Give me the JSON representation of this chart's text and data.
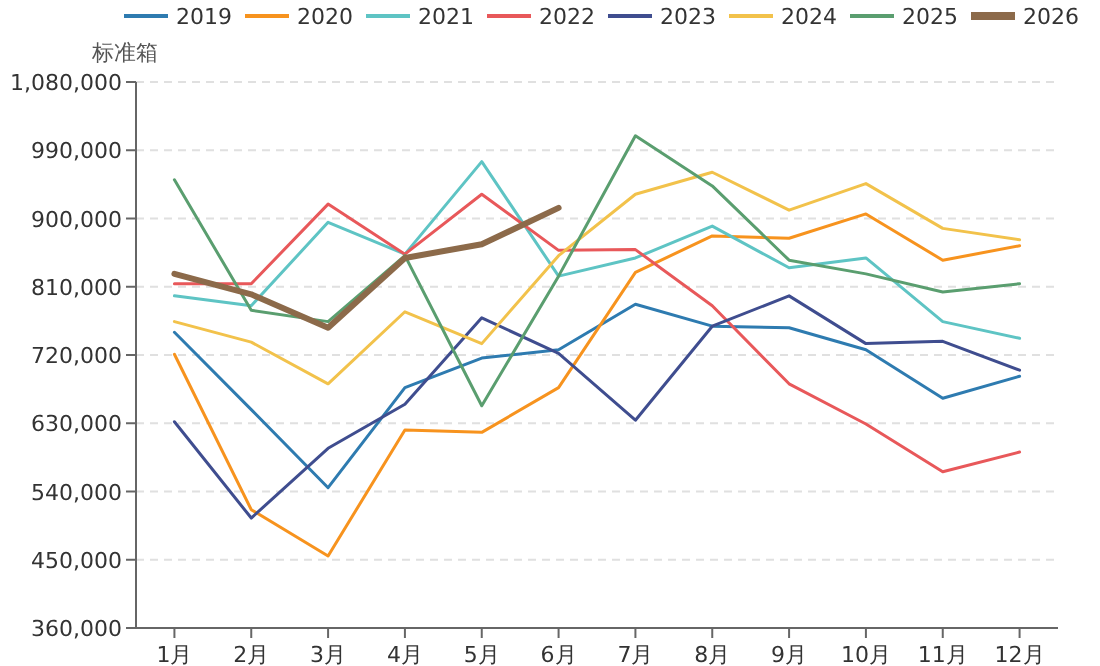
{
  "chart_data": {
    "type": "line",
    "ylabel": "标准箱",
    "categories": [
      "1月",
      "2月",
      "3月",
      "4月",
      "5月",
      "6月",
      "7月",
      "8月",
      "9月",
      "10月",
      "11月",
      "12月"
    ],
    "ylim": [
      360000,
      1080000
    ],
    "yticks": [
      {
        "value": 360000,
        "label": "360,000"
      },
      {
        "value": 450000,
        "label": "450,000"
      },
      {
        "value": 540000,
        "label": "540,000"
      },
      {
        "value": 630000,
        "label": "630,000"
      },
      {
        "value": 720000,
        "label": "720,000"
      },
      {
        "value": 810000,
        "label": "810,000"
      },
      {
        "value": 900000,
        "label": "900,000"
      },
      {
        "value": 990000,
        "label": "990,000"
      },
      {
        "value": 1080000,
        "label": "1,080,000"
      }
    ],
    "grid": "y",
    "legend": "top",
    "series": [
      {
        "name": "2019",
        "color": "#2e7bb0",
        "values": [
          750000,
          648000,
          545000,
          677000,
          716000,
          727000,
          787000,
          758000,
          756000,
          727000,
          663000,
          692000
        ]
      },
      {
        "name": "2020",
        "color": "#f7931e",
        "values": [
          721000,
          516000,
          455000,
          621000,
          618000,
          677000,
          829000,
          877000,
          874000,
          906000,
          845000,
          864000
        ]
      },
      {
        "name": "2021",
        "color": "#5ec4c4",
        "values": [
          798000,
          785000,
          895000,
          853000,
          975000,
          824000,
          848000,
          890000,
          835000,
          848000,
          764000,
          742000
        ]
      },
      {
        "name": "2022",
        "color": "#e8585a",
        "values": [
          814000,
          814000,
          919000,
          853000,
          932000,
          858000,
          859000,
          785000,
          682000,
          629000,
          566000,
          592000
        ]
      },
      {
        "name": "2023",
        "color": "#3f4d8f",
        "values": [
          632000,
          505000,
          597000,
          655000,
          769000,
          722000,
          634000,
          758000,
          798000,
          735000,
          738000,
          700000
        ]
      },
      {
        "name": "2024",
        "color": "#f2c24b",
        "values": [
          764000,
          737000,
          682000,
          777000,
          735000,
          851000,
          932000,
          961000,
          911000,
          946000,
          887000,
          872000
        ]
      },
      {
        "name": "2025",
        "color": "#5a9e6f",
        "values": [
          951000,
          779000,
          764000,
          851000,
          653000,
          824000,
          1009000,
          943000,
          845000,
          827000,
          803000,
          814000
        ]
      },
      {
        "name": "2026",
        "color": "#8c6a4a",
        "values": [
          827000,
          800000,
          756000,
          848000,
          866000,
          914000,
          null,
          null,
          null,
          null,
          null,
          null
        ]
      }
    ]
  }
}
